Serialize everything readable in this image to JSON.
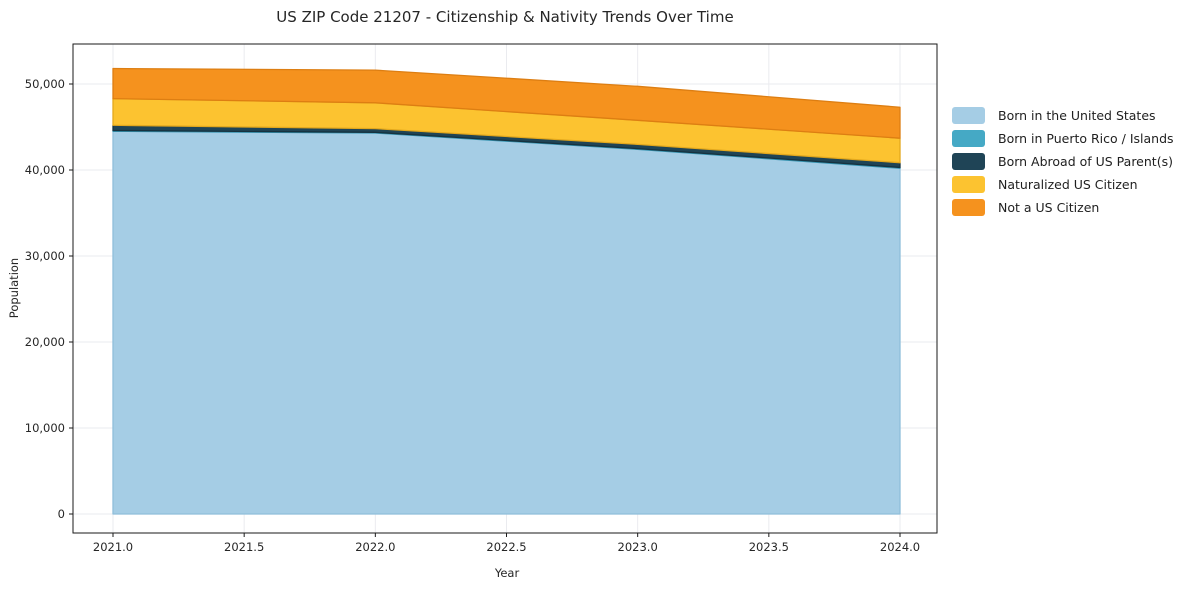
{
  "figure": {
    "background": "#ffffff"
  },
  "chart_data": {
    "type": "area",
    "stacked": true,
    "title": "US ZIP Code 21207 - Citizenship & Nativity Trends Over Time",
    "xlabel": "Year",
    "ylabel": "Population",
    "x": [
      2021,
      2022,
      2023,
      2024
    ],
    "series": [
      {
        "name": "Born in the United States",
        "color": "#A5CDE5",
        "edge": "#8FBEDA",
        "values": [
          44500,
          44300,
          42400,
          40200
        ]
      },
      {
        "name": "Born in Puerto Rico / Islands",
        "color": "#45A9C5",
        "edge": "#3594B1",
        "values": [
          100,
          80,
          90,
          100
        ]
      },
      {
        "name": "Born Abroad of US Parent(s)",
        "color": "#1F4456",
        "edge": "#16323F",
        "values": [
          600,
          430,
          490,
          550
        ]
      },
      {
        "name": "Naturalized US Citizen",
        "color": "#FCC330",
        "edge": "#E3A81D",
        "values": [
          3100,
          3000,
          2800,
          2850
        ]
      },
      {
        "name": "Not a US Citizen",
        "color": "#F5921E",
        "edge": "#DD7E12",
        "values": [
          3500,
          3800,
          3950,
          3600
        ]
      }
    ],
    "totals_by_year": [
      51800,
      51610,
      49730,
      47300
    ],
    "x_ticks": [
      {
        "v": 2021.0,
        "label": "2021.0"
      },
      {
        "v": 2021.5,
        "label": "2021.5"
      },
      {
        "v": 2022.0,
        "label": "2022.0"
      },
      {
        "v": 2022.5,
        "label": "2022.5"
      },
      {
        "v": 2023.0,
        "label": "2023.0"
      },
      {
        "v": 2023.5,
        "label": "2023.5"
      },
      {
        "v": 2024.0,
        "label": "2024.0"
      }
    ],
    "y_ticks": [
      {
        "v": 0,
        "label": "0"
      },
      {
        "v": 10000,
        "label": "10,000"
      },
      {
        "v": 20000,
        "label": "20,000"
      },
      {
        "v": 30000,
        "label": "30,000"
      },
      {
        "v": 40000,
        "label": "40,000"
      },
      {
        "v": 50000,
        "label": "50,000"
      }
    ],
    "xlim": [
      2020.85,
      2024.14
    ],
    "ylim": [
      -2200,
      54700
    ],
    "grid": true,
    "grid_color": "#eaebef",
    "axis_color": "#1a1a1a",
    "legend_position": "right"
  }
}
